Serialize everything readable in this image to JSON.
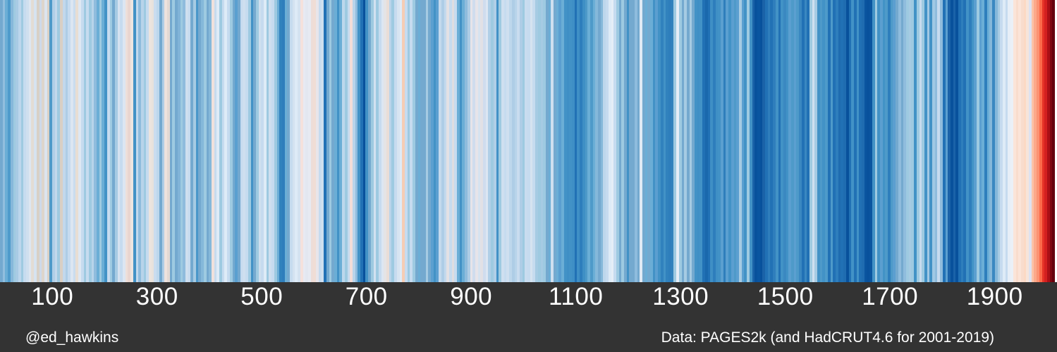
{
  "chart_data": {
    "type": "heatmap",
    "variant": "warming-stripes",
    "x_domain": [
      0,
      2019
    ],
    "bin_years": 5,
    "x_ticks": [
      100,
      300,
      500,
      700,
      900,
      1100,
      1300,
      1500,
      1700,
      1900
    ],
    "legend_position": "none",
    "grid": false,
    "palette": {
      "cold_scale": [
        "#deebf7",
        "#c6dbef",
        "#9ecae1",
        "#6baed6",
        "#4292c6",
        "#2171b5",
        "#08519c",
        "#08306b"
      ],
      "warm_scale": [
        "#fee0d2",
        "#fcbba1",
        "#fc9272",
        "#fb6a4a",
        "#ef3b2c",
        "#cb181d",
        "#a50f15",
        "#67000d"
      ]
    },
    "stripe_colors": [
      "#74a9cf",
      "#92bede",
      "#6baed6",
      "#4f9bcb",
      "#86b8da",
      "#9ecae1",
      "#a8cbe4",
      "#bcd6ec",
      "#9ecae1",
      "#c6dbef",
      "#cfdfef",
      "#dde6f1",
      "#e3dcd4",
      "#d6e3f0",
      "#d8d0c6",
      "#cdd9ea",
      "#ded5cb",
      "#dce4ef",
      "#d9d0c5",
      "#4e9ac9",
      "#b0cfe7",
      "#c2d8ec",
      "#9ecae1",
      "#d9cfc4",
      "#c2d8ec",
      "#aecde6",
      "#c6dbef",
      "#dce6f2",
      "#c9dcef",
      "#e8ddd2",
      "#dee8f3",
      "#c6dbef",
      "#9ecae1",
      "#c6dbef",
      "#9ecae1",
      "#b8d4ea",
      "#8fbcdd",
      "#6baed6",
      "#9ecae1",
      "#6baed6",
      "#4292c6",
      "#c6dbef",
      "#9ecae1",
      "#74a9cf",
      "#a6cbe3",
      "#d5e2f0",
      "#c6dbef",
      "#dce6f2",
      "#eedfd9",
      "#e9d5cf",
      "#eee5e0",
      "#4292c6",
      "#c3d9ed",
      "#8fbcdd",
      "#b8d4ea",
      "#9ecae1",
      "#c6dbef",
      "#ece4de",
      "#e8e2dc",
      "#c9dcef",
      "#bdd7ec",
      "#74a9cf",
      "#aecde6",
      "#eee2dd",
      "#e3d9d3",
      "#74a9cf",
      "#9ecae1",
      "#74a9cf",
      "#81b4d8",
      "#9ecae1",
      "#8fbcdd",
      "#cfdfef",
      "#c6dbef",
      "#74a9cf",
      "#a6cbe3",
      "#4a97c9",
      "#74a9cf",
      "#85b8da",
      "#9ecae1",
      "#74a9cf",
      "#85b8da",
      "#f0e1dc",
      "#c6dbef",
      "#deebf7",
      "#9ecae1",
      "#c6dbef",
      "#deebf7",
      "#c6dbef",
      "#9ecae1",
      "#74a9cf",
      "#5a9fd0",
      "#74a9cf",
      "#c6dbef",
      "#cfdfef",
      "#c6dbef",
      "#9ecae1",
      "#4292c6",
      "#74a9cf",
      "#9ecae1",
      "#cfdfef",
      "#c6dbef",
      "#deebf7",
      "#9ecae1",
      "#cfdfef",
      "#c6dbef",
      "#9ecae1",
      "#6baed6",
      "#3182bd",
      "#2f7ebc",
      "#6baed6",
      "#74a9cf",
      "#c6dbef",
      "#d4e2f0",
      "#deebf7",
      "#d4e2f0",
      "#f5e1dc",
      "#e7eaf2",
      "#e3e7f0",
      "#e7eaf2",
      "#edddd8",
      "#f0ddd5",
      "#e8e5ea",
      "#c6dbef",
      "#cfdfef",
      "#2171b5",
      "#74a9cf",
      "#9ecae1",
      "#74a9cf",
      "#6baed6",
      "#4292c6",
      "#6baed6",
      "#bdd7ec",
      "#9ecae1",
      "#c6dbef",
      "#f3ddd8",
      "#b9d4ea",
      "#8fbcdd",
      "#4292c6",
      "#2171b5",
      "#08519c",
      "#4292c6",
      "#74a9cf",
      "#9ecae1",
      "#d2e1f0",
      "#9ecae1",
      "#c6dbef",
      "#dce6f2",
      "#e4e4e6",
      "#e9ddd7",
      "#b9d4ea",
      "#9ecae1",
      "#c6dbef",
      "#d7e4f1",
      "#deebf7",
      "#f5cdb4",
      "#c6dbef",
      "#9ecae1",
      "#c6dbef",
      "#9ecae1",
      "#74a9cf",
      "#6baed6",
      "#74a9cf",
      "#74a9cf",
      "#a6cbe3",
      "#74a9cf",
      "#5b9fd0",
      "#4292c6",
      "#5b9fd0",
      "#c3d9ed",
      "#aecde6",
      "#c3d9ed",
      "#e3e1e4",
      "#c6dbef",
      "#dfdde0",
      "#c6dbef",
      "#6baed6",
      "#4292c6",
      "#6baed6",
      "#8fbcdd",
      "#aecde6",
      "#e6e4e9",
      "#cfdcee",
      "#e6e4e9",
      "#d6e3f0",
      "#e2e0e5",
      "#cfdcee",
      "#dce6f2",
      "#b0cfe7",
      "#9ecae1",
      "#b0cfe7",
      "#4292c6",
      "#9ecae1",
      "#cfdfef",
      "#c6dbef",
      "#cfdfef",
      "#bdd7ec",
      "#aecde6",
      "#b8d4ea",
      "#c9dcef",
      "#aecde6",
      "#9ecae1",
      "#c9dcef",
      "#c6dbef",
      "#d6e3f0",
      "#c6dbef",
      "#a6cbe3",
      "#9ecae1",
      "#a6cbe3",
      "#9ecae1",
      "#74a9cf",
      "#6baed6",
      "#cfdfef",
      "#74a9cf",
      "#6baed6",
      "#5b9fd0",
      "#6baed6",
      "#4292c6",
      "#3f8fc5",
      "#4292c6",
      "#3f8fc5",
      "#2171b5",
      "#3f8fc5",
      "#2e7ebc",
      "#3f8fc5",
      "#4e9ac9",
      "#6baed6",
      "#4e9ac9",
      "#6baed6",
      "#85b8da",
      "#74a9cf",
      "#85b8da",
      "#bdd7ec",
      "#c6dbef",
      "#deebf7",
      "#e6eef7",
      "#c6dbef",
      "#9ecae1",
      "#74a9cf",
      "#9ecae1",
      "#74a9cf",
      "#4292c6",
      "#74a9cf",
      "#74a9cf",
      "#8fbcdd",
      "#74a9cf",
      "#e2ebf5",
      "#74a9cf",
      "#6baed6",
      "#74a9cf",
      "#6baed6",
      "#4292c6",
      "#5b9fd0",
      "#4292c6",
      "#3182bd",
      "#4292c6",
      "#3182bd",
      "#2e7ebc",
      "#3182bd",
      "#9ecae1",
      "#e6eef7",
      "#9ecae1",
      "#74a9cf",
      "#a6cbe3",
      "#74a9cf",
      "#a6cbe3",
      "#74a9cf",
      "#4292c6",
      "#3f8fc5",
      "#4292c6",
      "#2171b5",
      "#1a68ac",
      "#2171b5",
      "#3f8fc5",
      "#2e7ebc",
      "#3f8fc5",
      "#4292c6",
      "#5b9fd0",
      "#2e7ebc",
      "#5b9fd0",
      "#4292c6",
      "#5b9fd0",
      "#4e9ac9",
      "#5b9fd0",
      "#a6cbe3",
      "#5b9fd0",
      "#4292c6",
      "#9ecae1",
      "#4292c6",
      "#1a62a8",
      "#08519c",
      "#0a55a0",
      "#08519c",
      "#1a62a8",
      "#2171b5",
      "#2f7ebc",
      "#2171b5",
      "#2f7ebc",
      "#4292c6",
      "#2171b5",
      "#4292c6",
      "#3a88c1",
      "#4292c6",
      "#5b9fd0",
      "#4e9ac9",
      "#5b9fd0",
      "#4e9ac9",
      "#3a88c1",
      "#2171b5",
      "#3a88c1",
      "#2171b5",
      "#9ecae1",
      "#cfe0f0",
      "#a6cbe3",
      "#4292c6",
      "#4e9ac9",
      "#4292c6",
      "#4e9ac9",
      "#2171b5",
      "#4e9ac9",
      "#2171b5",
      "#2e7ebc",
      "#1f6cb0",
      "#2171b5",
      "#1f6cb0",
      "#08519c",
      "#2171b5",
      "#4292c6",
      "#2171b5",
      "#4292c6",
      "#2171b5",
      "#1f6cb0",
      "#0a55a0",
      "#08519c",
      "#0a55a0",
      "#4292c6",
      "#9ecae1",
      "#4292c6",
      "#5b9fd0",
      "#4292c6",
      "#4e9ac9",
      "#2e7ebc",
      "#4e9ac9",
      "#5b9fd0",
      "#74a9cf",
      "#8fbcdd",
      "#74a9cf",
      "#8fbcdd",
      "#9ecae1",
      "#a6cbe3",
      "#9ecae1",
      "#4292c6",
      "#9ecae1",
      "#c6dbef",
      "#9ecae1",
      "#4292c6",
      "#a0c8e4",
      "#4292c6",
      "#a0c8e4",
      "#8fbcdd",
      "#c6dbef",
      "#8fbcdd",
      "#2171b5",
      "#5b9fd0",
      "#1a62a8",
      "#08519c",
      "#1a62a8",
      "#08519c",
      "#2171b5",
      "#2e7ebc",
      "#2171b5",
      "#4292c6",
      "#2e7ebc",
      "#4292c6",
      "#5b9fd0",
      "#9ecae1",
      "#5b9fd0",
      "#6baed6",
      "#2e7ebc",
      "#6baed6",
      "#85b8da",
      "#3a88c1",
      "#85b8da",
      "#a6cbe3",
      "#c6dbef",
      "#deebf7",
      "#c6dbef",
      "#e6eef7",
      "#ebf0f7",
      "#fbe4d8",
      "#f9dccd",
      "#fbe4d8",
      "#f9dccd",
      "#fcd9c4",
      "#f7e4da",
      "#dee2f0",
      "#fcc3a8",
      "#fca98a",
      "#fc9272",
      "#fb6a4a",
      "#e63327",
      "#d42020",
      "#ab1016",
      "#7f0610",
      "#67000d"
    ]
  },
  "axis": {
    "tick_labels": [
      "100",
      "300",
      "500",
      "700",
      "900",
      "1100",
      "1300",
      "1500",
      "1700",
      "1900"
    ]
  },
  "footer": {
    "author": "@ed_hawkins",
    "data_source": "Data: PAGES2k (and HadCRUT4.6 for 2001-2019)"
  },
  "colors": {
    "axis_bar_bg": "#333333",
    "axis_text": "#ffffff",
    "hottest": "#67000d",
    "coldest": "#08519c"
  }
}
